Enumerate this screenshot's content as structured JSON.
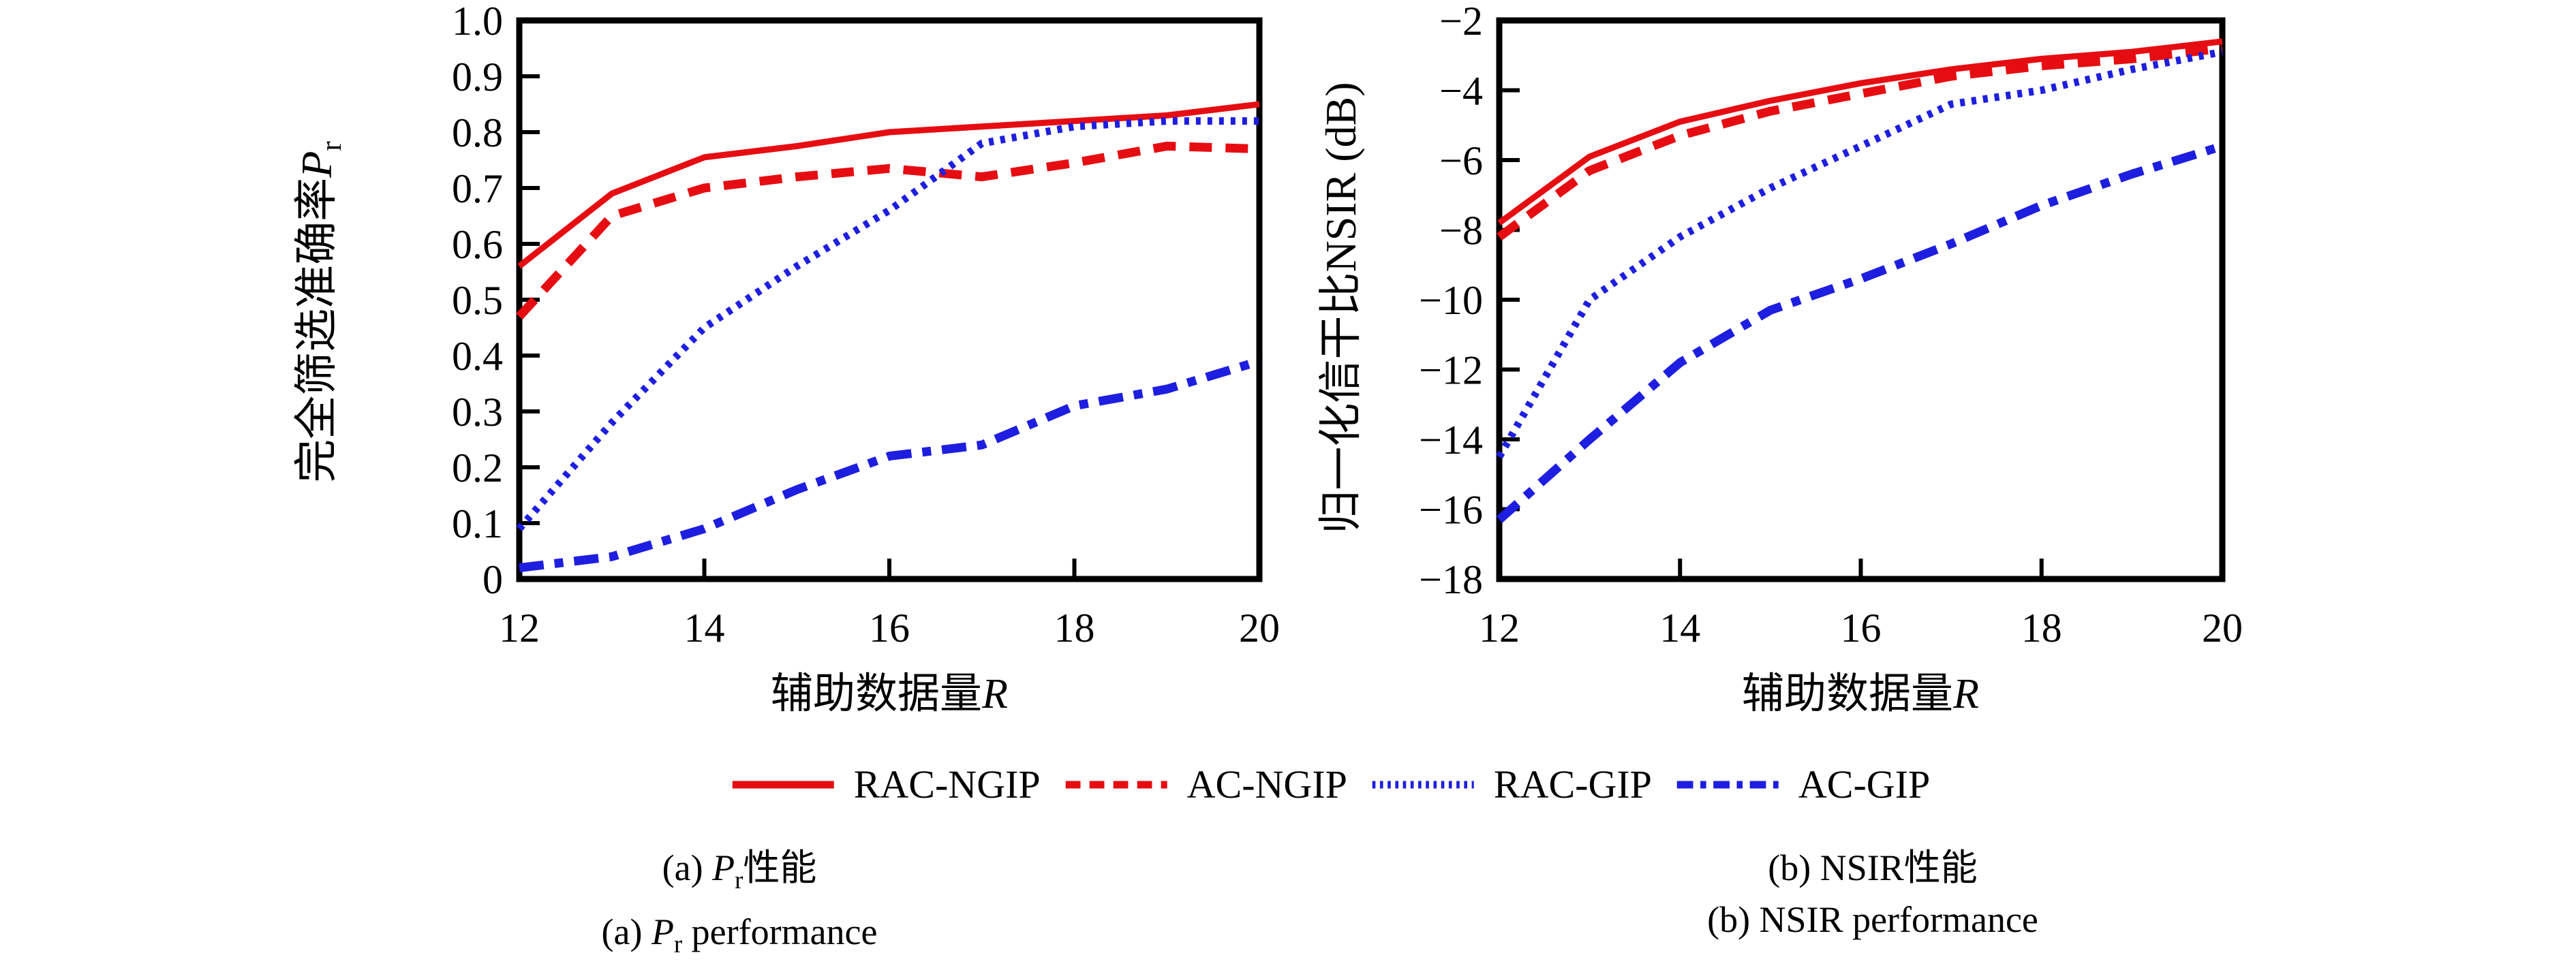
{
  "chart_data": [
    {
      "type": "line",
      "panel": "a",
      "xlabel": "辅助数据量R",
      "ylabel": "完全筛选准确率Pr",
      "xlim": [
        12,
        20
      ],
      "ylim": [
        0,
        1.0
      ],
      "xticks": [
        12,
        14,
        16,
        18,
        20
      ],
      "yticks": [
        0,
        0.1,
        0.2,
        0.3,
        0.4,
        0.5,
        0.6,
        0.7,
        0.8,
        0.9,
        1.0
      ],
      "yticklabels": [
        "0",
        "0.1",
        "0.2",
        "0.3",
        "0.4",
        "0.5",
        "0.6",
        "0.7",
        "0.8",
        "0.9",
        "1.0"
      ],
      "grid": false,
      "x": [
        12,
        13,
        14,
        15,
        16,
        17,
        18,
        19,
        20
      ],
      "series": [
        {
          "name": "RAC-NGIP",
          "color": "#e60d12",
          "style": "solid",
          "values": [
            0.56,
            0.69,
            0.755,
            0.775,
            0.8,
            0.81,
            0.82,
            0.83,
            0.85
          ]
        },
        {
          "name": "AC-NGIP",
          "color": "#e60d12",
          "style": "dashed",
          "values": [
            0.47,
            0.65,
            0.7,
            0.72,
            0.735,
            0.72,
            0.745,
            0.775,
            0.77
          ]
        },
        {
          "name": "RAC-GIP",
          "color": "#1e1ee0",
          "style": "dotted",
          "values": [
            0.09,
            0.28,
            0.45,
            0.56,
            0.66,
            0.78,
            0.81,
            0.82,
            0.82
          ]
        },
        {
          "name": "AC-GIP",
          "color": "#1e1ee0",
          "style": "dashdot",
          "values": [
            0.02,
            0.04,
            0.09,
            0.16,
            0.22,
            0.24,
            0.31,
            0.34,
            0.39
          ]
        }
      ]
    },
    {
      "type": "line",
      "panel": "b",
      "xlabel": "辅助数据量R",
      "ylabel": "归一化信干比NSIR (dB)",
      "xlim": [
        12,
        20
      ],
      "ylim": [
        -18,
        -2
      ],
      "xticks": [
        12,
        14,
        16,
        18,
        20
      ],
      "yticks": [
        -18,
        -16,
        -14,
        -12,
        -10,
        -8,
        -6,
        -4,
        -2
      ],
      "yticklabels": [
        "−18",
        "−16",
        "−14",
        "−12",
        "−10",
        "−8",
        "−6",
        "−4",
        "−2"
      ],
      "grid": false,
      "x": [
        12,
        13,
        14,
        15,
        16,
        17,
        18,
        19,
        20
      ],
      "series": [
        {
          "name": "RAC-NGIP",
          "color": "#e60d12",
          "style": "solid",
          "values": [
            -7.8,
            -5.9,
            -4.9,
            -4.3,
            -3.8,
            -3.4,
            -3.1,
            -2.9,
            -2.6
          ]
        },
        {
          "name": "AC-NGIP",
          "color": "#e60d12",
          "style": "dashed",
          "values": [
            -8.2,
            -6.3,
            -5.3,
            -4.6,
            -4.1,
            -3.6,
            -3.3,
            -3.1,
            -2.8
          ]
        },
        {
          "name": "RAC-GIP",
          "color": "#1e1ee0",
          "style": "dotted",
          "values": [
            -14.5,
            -10.0,
            -8.2,
            -6.8,
            -5.6,
            -4.4,
            -4.0,
            -3.4,
            -2.9
          ]
        },
        {
          "name": "AC-GIP",
          "color": "#1e1ee0",
          "style": "dashdot",
          "values": [
            -16.3,
            -14.0,
            -11.8,
            -10.3,
            -9.4,
            -8.4,
            -7.3,
            -6.4,
            -5.6
          ]
        }
      ]
    }
  ],
  "labels": {
    "left_ylabel": {
      "cjk": "完全筛选准确率",
      "math": "P",
      "sub": "r"
    },
    "right_ylabel": {
      "text": "归一化信干比NSIR (dB)"
    },
    "xlabel": {
      "cjk": "辅助数据量",
      "math": "R"
    }
  },
  "legend": {
    "items": [
      {
        "label": "RAC-NGIP",
        "color": "#e60d12",
        "style": "solid"
      },
      {
        "label": "AC-NGIP",
        "color": "#e60d12",
        "style": "dashed"
      },
      {
        "label": "RAC-GIP",
        "color": "#1e1ee0",
        "style": "dotted"
      },
      {
        "label": "AC-GIP",
        "color": "#1e1ee0",
        "style": "dashdot"
      }
    ]
  },
  "captions": {
    "a": {
      "prefix": "(a) ",
      "math": "P",
      "sub": "r",
      "suffix_cn": "性能",
      "suffix_en": " performance"
    },
    "b": {
      "cn": "(b) NSIR性能",
      "en": "(b) NSIR performance"
    }
  }
}
